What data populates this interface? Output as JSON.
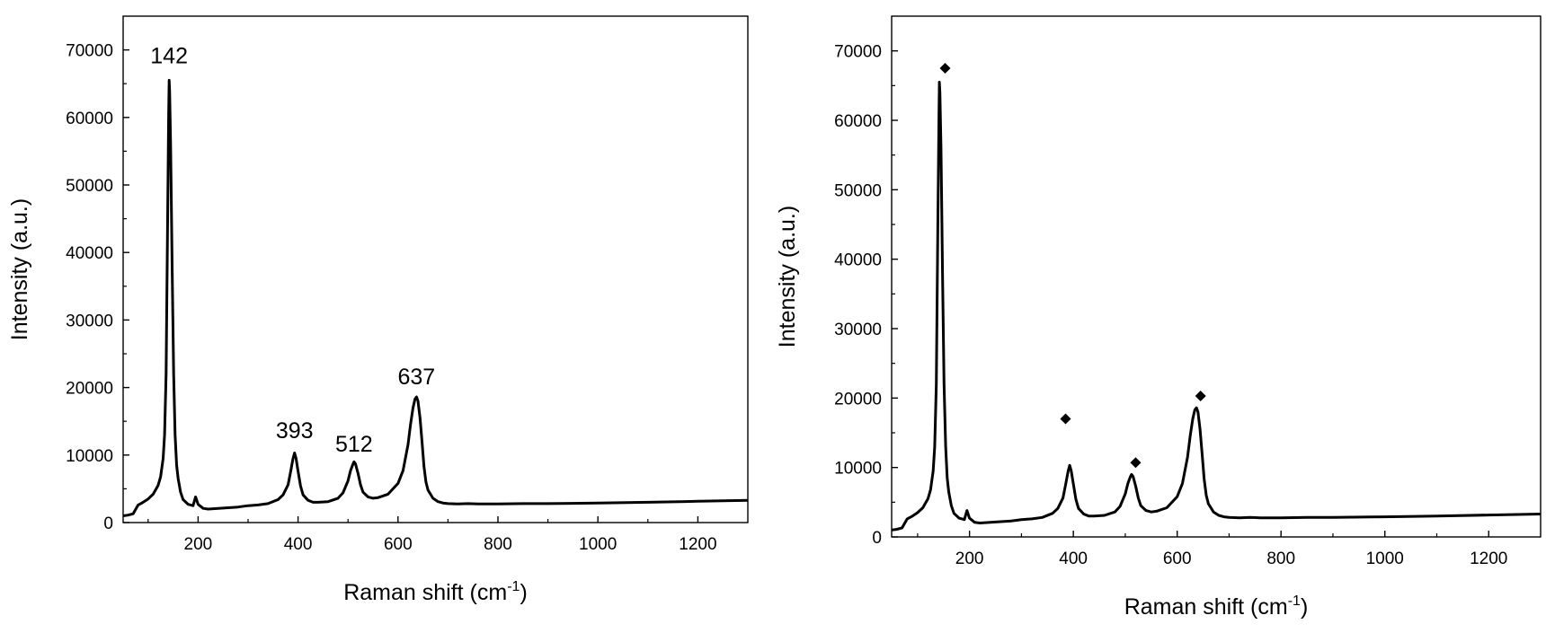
{
  "chart_data": [
    {
      "type": "line",
      "title": "",
      "xlabel": "Raman shift (cm",
      "xlabel_sup": "-1",
      "xlabel_close": ")",
      "ylabel": "Intensity (a.u.)",
      "xlim": [
        50,
        1300
      ],
      "ylim": [
        0,
        75000
      ],
      "x_ticks": [
        200,
        400,
        600,
        800,
        1000,
        1200
      ],
      "y_ticks": [
        0,
        10000,
        20000,
        30000,
        40000,
        50000,
        60000,
        70000
      ],
      "x_tick_labels": [
        "200",
        "400",
        "600",
        "800",
        "1000",
        "1200"
      ],
      "y_tick_labels": [
        "0",
        "10000",
        "20000",
        "30000",
        "40000",
        "50000",
        "60000",
        "70000"
      ],
      "grid": false,
      "legend": "none",
      "series": [
        {
          "color": "#000000",
          "x": [
            50,
            60,
            70,
            80,
            90,
            100,
            110,
            120,
            125,
            130,
            133,
            136,
            139,
            141,
            142,
            143,
            145,
            148,
            151,
            154,
            157,
            160,
            165,
            170,
            180,
            190,
            195,
            200,
            210,
            220,
            240,
            260,
            280,
            300,
            320,
            340,
            360,
            370,
            380,
            385,
            390,
            393,
            396,
            400,
            405,
            410,
            420,
            430,
            440,
            460,
            480,
            490,
            500,
            505,
            510,
            512,
            515,
            520,
            525,
            530,
            540,
            550,
            560,
            580,
            600,
            610,
            620,
            625,
            630,
            634,
            637,
            640,
            644,
            648,
            652,
            656,
            660,
            670,
            680,
            690,
            700,
            720,
            740,
            760,
            800,
            850,
            900,
            1000,
            1100,
            1200,
            1300
          ],
          "y": [
            1000,
            1100,
            1300,
            2600,
            3000,
            3500,
            4200,
            5500,
            6800,
            9500,
            13000,
            22000,
            45000,
            60000,
            65500,
            64000,
            56000,
            38000,
            22000,
            13000,
            8500,
            6500,
            4500,
            3400,
            2700,
            2500,
            3800,
            2700,
            2100,
            2000,
            2100,
            2200,
            2300,
            2500,
            2600,
            2800,
            3400,
            4100,
            5600,
            7500,
            9500,
            10300,
            9500,
            7600,
            5400,
            4100,
            3300,
            3000,
            3000,
            3100,
            3600,
            4400,
            6200,
            7700,
            8700,
            9000,
            8700,
            7300,
            5600,
            4500,
            3800,
            3600,
            3700,
            4200,
            5800,
            7700,
            11500,
            14500,
            17000,
            18300,
            18600,
            18000,
            15500,
            12000,
            8300,
            6000,
            4800,
            3600,
            3100,
            2900,
            2800,
            2750,
            2800,
            2750,
            2750,
            2800,
            2800,
            2900,
            3000,
            3150,
            3300
          ]
        }
      ],
      "annotations": [
        {
          "text": "142",
          "x": 142,
          "y": 68000
        },
        {
          "text": "393",
          "x": 393,
          "y": 12500
        },
        {
          "text": "512",
          "x": 512,
          "y": 10500
        },
        {
          "text": "637",
          "x": 637,
          "y": 20500
        }
      ]
    },
    {
      "type": "line",
      "title": "",
      "xlabel": "Raman shift (cm",
      "xlabel_sup": "-1",
      "xlabel_close": ")",
      "ylabel": "Intensity (a.u.)",
      "xlim": [
        50,
        1300
      ],
      "ylim": [
        0,
        75000
      ],
      "x_ticks": [
        200,
        400,
        600,
        800,
        1000,
        1200
      ],
      "y_ticks": [
        0,
        10000,
        20000,
        30000,
        40000,
        50000,
        60000,
        70000
      ],
      "x_tick_labels": [
        "200",
        "400",
        "600",
        "800",
        "1000",
        "1200"
      ],
      "y_tick_labels": [
        "0",
        "10000",
        "20000",
        "30000",
        "40000",
        "50000",
        "60000",
        "70000"
      ],
      "grid": false,
      "legend": "none",
      "series": [
        {
          "color": "#000000",
          "x": [
            50,
            60,
            70,
            80,
            90,
            100,
            110,
            120,
            125,
            130,
            133,
            136,
            139,
            141,
            142,
            143,
            145,
            148,
            151,
            154,
            157,
            160,
            165,
            170,
            180,
            190,
            195,
            200,
            210,
            220,
            240,
            260,
            280,
            300,
            320,
            340,
            360,
            370,
            380,
            385,
            390,
            393,
            396,
            400,
            405,
            410,
            420,
            430,
            440,
            460,
            480,
            490,
            500,
            505,
            510,
            512,
            515,
            520,
            525,
            530,
            540,
            550,
            560,
            580,
            600,
            610,
            620,
            625,
            630,
            634,
            637,
            640,
            644,
            648,
            652,
            656,
            660,
            670,
            680,
            690,
            700,
            720,
            740,
            760,
            800,
            850,
            900,
            1000,
            1100,
            1200,
            1300
          ],
          "y": [
            1000,
            1100,
            1300,
            2600,
            3000,
            3500,
            4200,
            5500,
            6800,
            9500,
            13000,
            22000,
            45000,
            60000,
            65500,
            64000,
            56000,
            38000,
            22000,
            13000,
            8500,
            6500,
            4500,
            3400,
            2700,
            2500,
            3800,
            2700,
            2100,
            2000,
            2100,
            2200,
            2300,
            2500,
            2600,
            2800,
            3400,
            4100,
            5600,
            7500,
            9500,
            10300,
            9500,
            7600,
            5400,
            4100,
            3300,
            3000,
            3000,
            3100,
            3600,
            4400,
            6200,
            7700,
            8700,
            9000,
            8700,
            7300,
            5600,
            4500,
            3800,
            3600,
            3700,
            4200,
            5800,
            7700,
            11500,
            14500,
            17000,
            18300,
            18600,
            18000,
            15500,
            12000,
            8300,
            6000,
            4800,
            3600,
            3100,
            2900,
            2800,
            2750,
            2800,
            2750,
            2750,
            2800,
            2800,
            2900,
            3000,
            3150,
            3300
          ]
        }
      ],
      "markers": [
        {
          "shape": "diamond",
          "x": 153,
          "y": 67500
        },
        {
          "shape": "diamond",
          "x": 385,
          "y": 17000
        },
        {
          "shape": "diamond",
          "x": 520,
          "y": 10700
        },
        {
          "shape": "diamond",
          "x": 645,
          "y": 20300
        }
      ]
    }
  ]
}
